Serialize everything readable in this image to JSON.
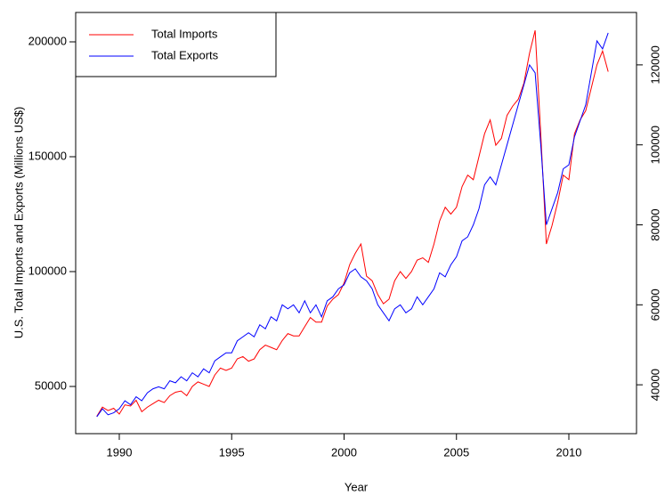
{
  "chart_data": {
    "type": "line",
    "x_label": "Year",
    "y_label": "U.S. Total Imports and Exports (Millions US$)",
    "x": [
      1989,
      1989.25,
      1989.5,
      1989.75,
      1990,
      1990.25,
      1990.5,
      1990.75,
      1991,
      1991.25,
      1991.5,
      1991.75,
      1992,
      1992.25,
      1992.5,
      1992.75,
      1993,
      1993.25,
      1993.5,
      1993.75,
      1994,
      1994.25,
      1994.5,
      1994.75,
      1995,
      1995.25,
      1995.5,
      1995.75,
      1996,
      1996.25,
      1996.5,
      1996.75,
      1997,
      1997.25,
      1997.5,
      1997.75,
      1998,
      1998.25,
      1998.5,
      1998.75,
      1999,
      1999.25,
      1999.5,
      1999.75,
      2000,
      2000.25,
      2000.5,
      2000.75,
      2001,
      2001.25,
      2001.5,
      2001.75,
      2002,
      2002.25,
      2002.5,
      2002.75,
      2003,
      2003.25,
      2003.5,
      2003.75,
      2004,
      2004.25,
      2004.5,
      2004.75,
      2005,
      2005.25,
      2005.5,
      2005.75,
      2006,
      2006.25,
      2006.5,
      2006.75,
      2007,
      2007.25,
      2007.5,
      2007.75,
      2008,
      2008.25,
      2008.5,
      2008.75,
      2009,
      2009.25,
      2009.5,
      2009.75,
      2010,
      2010.25,
      2010.5,
      2010.75,
      2011,
      2011.25,
      2011.5,
      2011.75
    ],
    "series": [
      {
        "name": "Total Imports",
        "color": "#ff0000",
        "axis": "y",
        "values": [
          37000,
          41000,
          39500,
          40500,
          38000,
          42000,
          41500,
          44000,
          39000,
          41000,
          42500,
          44000,
          43000,
          46000,
          47500,
          48000,
          46000,
          50000,
          52000,
          51000,
          50000,
          55000,
          58000,
          57000,
          58000,
          62000,
          63000,
          61000,
          62000,
          66000,
          68000,
          67000,
          66000,
          70000,
          73000,
          72000,
          72000,
          76000,
          80000,
          78000,
          78000,
          85000,
          88000,
          90000,
          95000,
          103000,
          108000,
          112000,
          98000,
          96000,
          90000,
          86000,
          88000,
          96000,
          100000,
          97000,
          100000,
          105000,
          106000,
          104000,
          112000,
          122000,
          128000,
          125000,
          128000,
          137000,
          142000,
          140000,
          150000,
          160000,
          166000,
          155000,
          158000,
          168000,
          172000,
          175000,
          182000,
          195000,
          205000,
          160000,
          112000,
          120000,
          130000,
          142000,
          140000,
          160000,
          166000,
          170000,
          180000,
          190000,
          196000,
          187000
        ]
      },
      {
        "name": "Total Exports",
        "color": "#0000ff",
        "axis": "y2",
        "values": [
          32000,
          34000,
          32500,
          33000,
          34000,
          36000,
          35000,
          37000,
          36000,
          38000,
          39000,
          39500,
          39000,
          41000,
          40500,
          42000,
          41000,
          43000,
          42000,
          44000,
          43000,
          46000,
          47000,
          48000,
          48000,
          51000,
          52000,
          53000,
          52000,
          55000,
          54000,
          57000,
          56000,
          60000,
          59000,
          60000,
          58000,
          61000,
          58000,
          60000,
          57000,
          61000,
          62000,
          64000,
          65000,
          68000,
          69000,
          67000,
          66000,
          64000,
          60000,
          58000,
          56000,
          59000,
          60000,
          58000,
          59000,
          62000,
          60000,
          62000,
          64000,
          68000,
          67000,
          70000,
          72000,
          76000,
          77000,
          80000,
          84000,
          90000,
          92000,
          90000,
          95000,
          100000,
          105000,
          110000,
          115000,
          120000,
          118000,
          100000,
          80000,
          84000,
          88000,
          94000,
          95000,
          102000,
          106000,
          110000,
          118000,
          126000,
          124000,
          128000
        ]
      }
    ],
    "xlim": [
      1988.06,
      2013.01
    ],
    "xticks": [
      1990,
      1995,
      2000,
      2005,
      2010
    ],
    "ylim": [
      29460,
      212790
    ],
    "yticks": [
      50000,
      100000,
      150000,
      200000
    ],
    "y2lim": [
      27780,
      133110
    ],
    "y2ticks": [
      40000,
      60000,
      80000,
      100000,
      120000
    ],
    "legend": "top-left",
    "grid": false
  }
}
